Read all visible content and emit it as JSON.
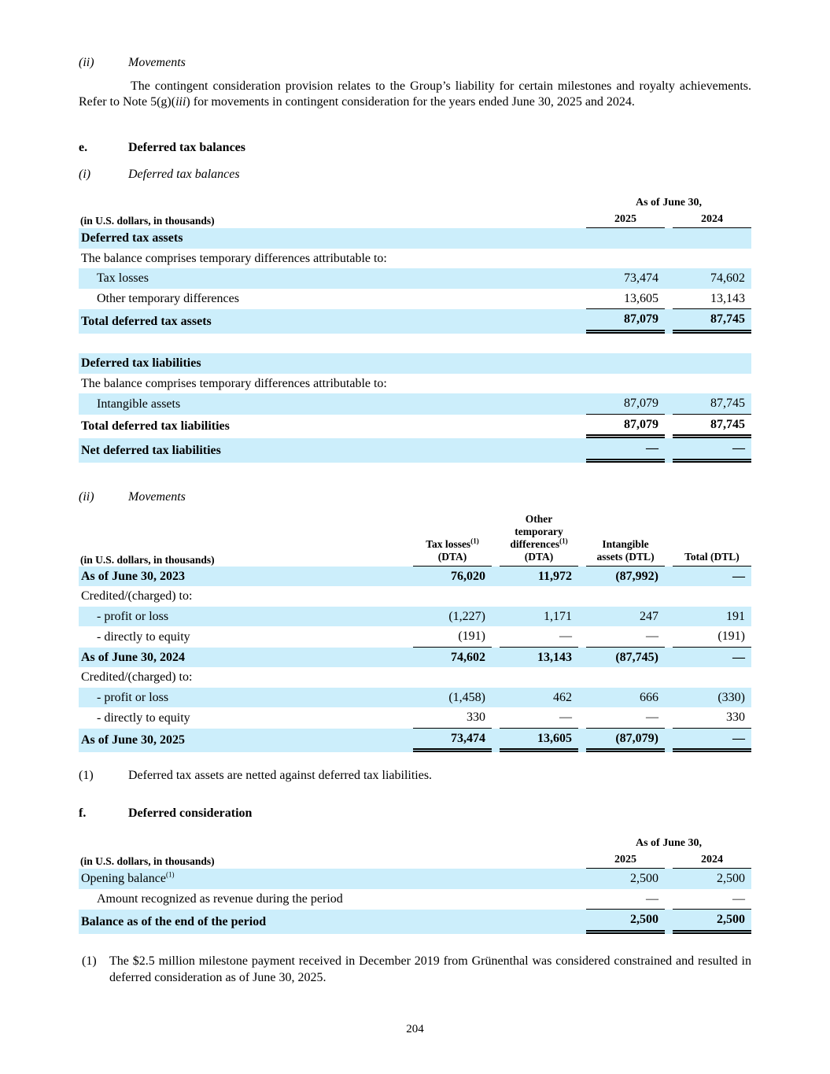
{
  "colors": {
    "row_blue": "#CCEEFB"
  },
  "intro": {
    "marker": "(ii)",
    "title": "Movements",
    "para_1": "The contingent consideration provision relates to the Group’s liability for certain milestones and royalty achievements. Refer to Note 5(g)(",
    "para_italic": "iii",
    "para_2": ") for movements in contingent consideration for the years ended June 30, 2025 and 2024."
  },
  "section_e": {
    "marker": "e.",
    "title": "Deferred tax balances"
  },
  "sub_i": {
    "marker": "(i)",
    "title": "Deferred tax balances"
  },
  "table1": {
    "as_of": "As of June 30,",
    "units": "(in U.S. dollars, in thousands)",
    "years": [
      "2025",
      "2024"
    ],
    "rows": [
      {
        "label": "Deferred tax assets",
        "v1": "",
        "v2": ""
      },
      {
        "label": "The balance comprises temporary differences attributable to:",
        "v1": "",
        "v2": ""
      },
      {
        "label": "Tax losses",
        "v1": "73,474",
        "v2": "74,602"
      },
      {
        "label": "Other temporary differences",
        "v1": "13,605",
        "v2": "13,143"
      },
      {
        "label": "Total deferred tax assets",
        "v1": "87,079",
        "v2": "87,745"
      },
      {
        "label": "Deferred tax liabilities",
        "v1": "",
        "v2": ""
      },
      {
        "label": "The balance comprises temporary differences attributable to:",
        "v1": "",
        "v2": ""
      },
      {
        "label": "Intangible assets",
        "v1": "87,079",
        "v2": "87,745"
      },
      {
        "label": "Total deferred tax liabilities",
        "v1": "87,079",
        "v2": "87,745"
      },
      {
        "label": "Net deferred tax liabilities",
        "v1": "—",
        "v2": "—"
      }
    ]
  },
  "sub_ii": {
    "marker": "(ii)",
    "title": "Movements"
  },
  "movements": {
    "units": "(in U.S. dollars, in thousands)",
    "headers": {
      "col1": {
        "l1": "Tax losses",
        "sup": "(1)",
        "l2": "(DTA)"
      },
      "col2": {
        "l1": "Other",
        "l2": "temporary",
        "l3": "differences",
        "sup": "(1)",
        "l4": "(DTA)"
      },
      "col3": {
        "l1": "Intangible",
        "l2": "assets (DTL)"
      },
      "col4": {
        "l1": "Total (DTL)"
      }
    },
    "rows": [
      {
        "label": "As of June 30, 2023",
        "v1": "76,020",
        "v2": "11,972",
        "v3": "(87,992)",
        "v4": "—"
      },
      {
        "label": "Credited/(charged) to:",
        "v1": "",
        "v2": "",
        "v3": "",
        "v4": ""
      },
      {
        "label": "- profit or loss",
        "v1": "(1,227)",
        "v2": "1,171",
        "v3": "247",
        "v4": "191"
      },
      {
        "label": "- directly to equity",
        "v1": "(191)",
        "v2": "—",
        "v3": "—",
        "v4": "(191)"
      },
      {
        "label": "As of June 30, 2024",
        "v1": "74,602",
        "v2": "13,143",
        "v3": "(87,745)",
        "v4": "—"
      },
      {
        "label": "Credited/(charged) to:",
        "v1": "",
        "v2": "",
        "v3": "",
        "v4": ""
      },
      {
        "label": "- profit or loss",
        "v1": "(1,458)",
        "v2": "462",
        "v3": "666",
        "v4": "(330)"
      },
      {
        "label": "- directly to equity",
        "v1": "330",
        "v2": "—",
        "v3": "—",
        "v4": "330"
      },
      {
        "label": "As of June 30, 2025",
        "v1": "73,474",
        "v2": "13,605",
        "v3": "(87,079)",
        "v4": "—"
      }
    ]
  },
  "footnote_1": {
    "marker": "(1)",
    "text": "Deferred tax assets are netted against deferred tax liabilities."
  },
  "section_f": {
    "marker": "f.",
    "title": "Deferred consideration"
  },
  "table3": {
    "as_of": "As of June 30,",
    "units": "(in U.S. dollars, in thousands)",
    "years": [
      "2025",
      "2024"
    ],
    "rows": [
      {
        "label": "Opening balance",
        "sup": "(1)",
        "v1": "2,500",
        "v2": "2,500"
      },
      {
        "label": "Amount recognized as revenue during the period",
        "v1": "—",
        "v2": "—"
      },
      {
        "label": "Balance as of the end of the period",
        "v1": "2,500",
        "v2": "2,500"
      }
    ]
  },
  "footnote_2": {
    "marker": "(1)",
    "text": "The $2.5 million milestone payment received in December 2019 from Grünenthal was considered constrained and resulted in deferred consideration as of June 30, 2025."
  },
  "page_number": "204"
}
